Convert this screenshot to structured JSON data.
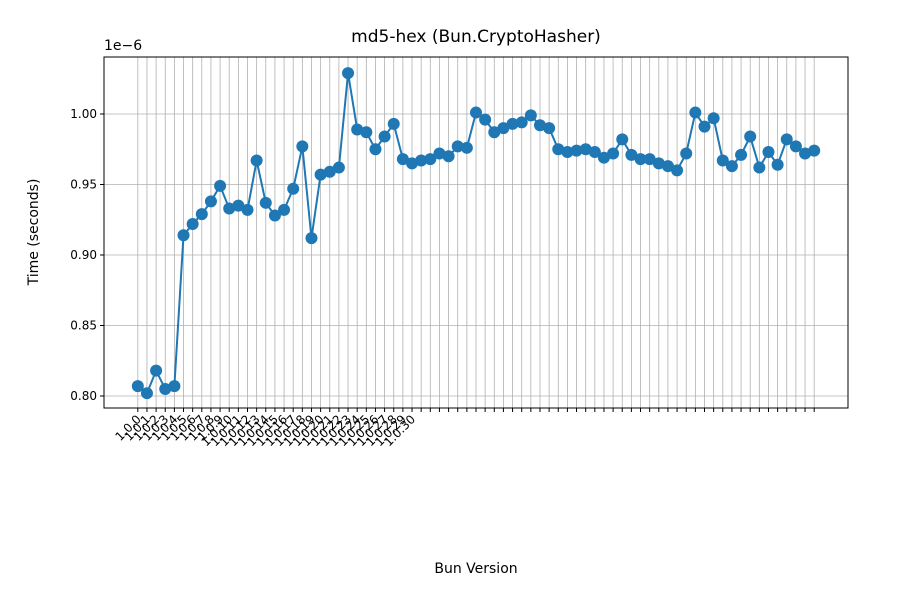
{
  "chart_data": {
    "type": "line",
    "title": "md5-hex (Bun.CryptoHasher)",
    "xlabel": "Bun Version",
    "ylabel": "Time (seconds)",
    "y_offset_text": "1e−6",
    "categories": [
      "1.0.0",
      "1.0.1",
      "1.0.2",
      "1.0.3",
      "1.0.4",
      "1.0.5",
      "1.0.6",
      "1.0.7",
      "1.0.8",
      "1.0.9",
      "1.0.10",
      "1.0.11",
      "1.0.12",
      "1.0.13",
      "1.0.14",
      "1.0.15",
      "1.0.16",
      "1.0.17",
      "1.0.18",
      "1.0.19",
      "1.0.20",
      "1.0.21",
      "1.0.22",
      "1.0.23",
      "1.0.24",
      "1.0.25",
      "1.0.26",
      "1.0.27",
      "1.0.28",
      "1.0.29",
      "1.0.30",
      null,
      null,
      null,
      null,
      null,
      null,
      null,
      null,
      null,
      null,
      null,
      null,
      null,
      null,
      null,
      null,
      null,
      null,
      null,
      null,
      null,
      null,
      null,
      null,
      null,
      null,
      null,
      null,
      null,
      null,
      null,
      null,
      null,
      null,
      null,
      null,
      null,
      null,
      null,
      null,
      null,
      null,
      null,
      null
    ],
    "series": [
      {
        "name": "md5-hex",
        "color": "#1f77b4",
        "values": [
          0.807,
          0.802,
          0.818,
          0.805,
          0.807,
          0.914,
          0.922,
          0.929,
          0.938,
          0.949,
          0.933,
          0.935,
          0.932,
          0.967,
          0.937,
          0.928,
          0.932,
          0.947,
          0.977,
          0.912,
          0.957,
          0.959,
          0.962,
          1.029,
          0.989,
          0.987,
          0.975,
          0.984,
          0.993,
          0.968,
          0.965,
          0.967,
          0.968,
          0.972,
          0.97,
          0.977,
          0.976,
          1.001,
          0.996,
          0.987,
          0.99,
          0.993,
          0.994,
          0.999,
          0.992,
          0.99,
          0.975,
          0.973,
          0.974,
          0.975,
          0.973,
          0.969,
          0.972,
          0.982,
          0.971,
          0.968,
          0.968,
          0.965,
          0.963,
          0.96,
          0.972,
          1.001,
          0.991,
          0.997,
          0.967,
          0.963,
          0.971,
          0.984,
          0.962,
          0.973,
          0.964,
          0.982,
          0.977,
          0.972,
          0.974
        ]
      }
    ],
    "ylim": [
      0.7915,
      1.0404
    ],
    "yticks": [
      {
        "value": 0.8,
        "label": "0.80"
      },
      {
        "value": 0.85,
        "label": "0.85"
      },
      {
        "value": 0.9,
        "label": "0.90"
      },
      {
        "value": 0.95,
        "label": "0.95"
      },
      {
        "value": 1.0,
        "label": "1.00"
      }
    ],
    "grid": true
  }
}
